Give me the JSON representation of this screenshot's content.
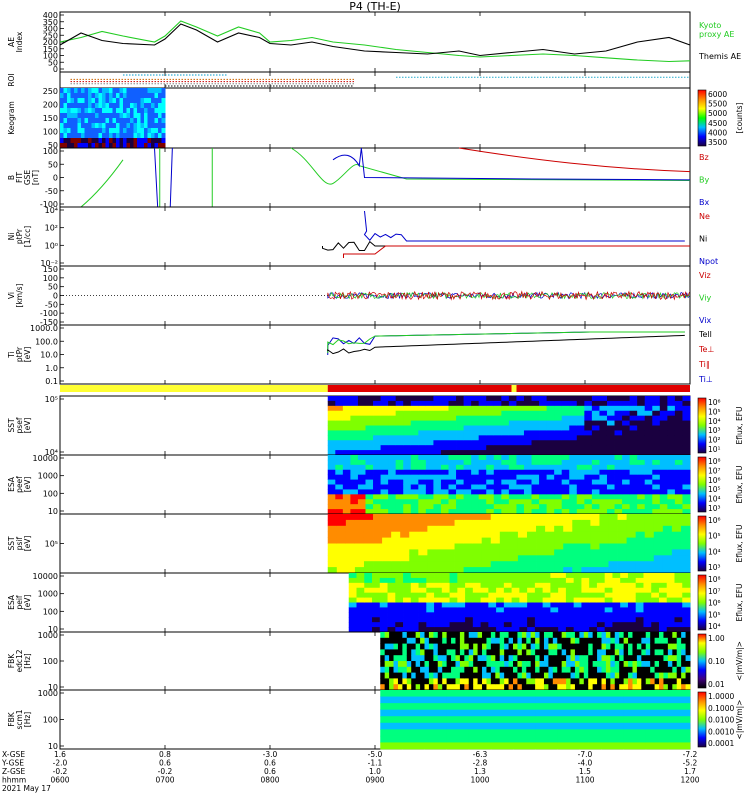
{
  "title": "P4 (TH-E)",
  "footer": {
    "row_labels": [
      "X-GSE",
      "Y-GSE",
      "Z-GSE",
      "hhmm",
      "2021 May 17"
    ],
    "x_ticks": [
      {
        "time": "0600",
        "cols": [
          "1.6",
          "-2.0",
          "-0.2"
        ]
      },
      {
        "time": "0700",
        "cols": [
          "0.8",
          "0.6",
          "-0.2"
        ]
      },
      {
        "time": "0800",
        "cols": [
          "-3.0",
          "0.6",
          "0.6"
        ]
      },
      {
        "time": "0900",
        "cols": [
          "-5.0",
          "-1.1",
          "1.0"
        ]
      },
      {
        "time": "1000",
        "cols": [
          "-6.3",
          "-2.8",
          "1.3"
        ]
      },
      {
        "time": "1100",
        "cols": [
          "-7.0",
          "-4.0",
          "1.5"
        ]
      },
      {
        "time": "1200",
        "cols": [
          "-7.2",
          "-5.2",
          "1.7"
        ]
      }
    ]
  },
  "chart_data": {
    "type": "line",
    "x_range": [
      "0600",
      "1200"
    ],
    "panels": [
      {
        "id": "ae",
        "ylabel": "AE Index",
        "ylim": [
          0,
          400
        ],
        "ticks": [
          "400",
          "350",
          "300",
          "250",
          "200",
          "150",
          "100",
          "50",
          "0"
        ],
        "legend": [
          {
            "name": "Kyoto proxy AE",
            "color": "#22cc22"
          },
          {
            "name": "Themis AE",
            "color": "#000000"
          }
        ],
        "series": [
          {
            "name": "Kyoto proxy AE",
            "color": "#22cc22",
            "x": [
              6.0,
              6.2,
              6.4,
              6.6,
              6.9,
              7.0,
              7.15,
              7.3,
              7.5,
              7.7,
              7.9,
              8.0,
              8.2,
              8.4,
              8.6,
              8.9,
              9.2,
              9.5,
              9.8,
              10.0,
              10.3,
              10.6,
              10.9,
              11.2,
              11.5,
              11.8,
              12.0
            ],
            "y": [
              200,
              230,
              270,
              240,
              200,
              240,
              340,
              300,
              240,
              300,
              260,
              200,
              210,
              230,
              200,
              180,
              150,
              130,
              110,
              100,
              110,
              120,
              110,
              95,
              80,
              70,
              75
            ]
          },
          {
            "name": "Themis AE",
            "color": "#000000",
            "x": [
              6.0,
              6.2,
              6.4,
              6.6,
              6.9,
              7.0,
              7.15,
              7.3,
              7.5,
              7.7,
              7.9,
              8.0,
              8.2,
              8.4,
              8.6,
              8.9,
              9.2,
              9.5,
              9.8,
              10.0,
              10.3,
              10.6,
              10.9,
              11.2,
              11.5,
              11.8,
              12.0
            ],
            "y": [
              180,
              260,
              210,
              190,
              180,
              220,
              320,
              280,
              200,
              260,
              230,
              190,
              180,
              200,
              170,
              140,
              130,
              120,
              140,
              110,
              130,
              150,
              120,
              140,
              200,
              230,
              180
            ]
          }
        ]
      },
      {
        "id": "roi",
        "ylabel": "ROI"
      },
      {
        "id": "keogram",
        "ylabel": "Keogram",
        "ylim": [
          0,
          250
        ],
        "ticks": [
          "250",
          "200",
          "150",
          "100",
          "50"
        ],
        "colorbar": {
          "ticks": [
            "6000",
            "5500",
            "5000",
            "4500",
            "4000",
            "3500"
          ],
          "unit": "[counts]"
        }
      },
      {
        "id": "bfit",
        "ylabel": "B FIT GSE [nT]",
        "ylim": [
          -100,
          100
        ],
        "ticks": [
          "100",
          "50",
          "0",
          "-50",
          "-100"
        ],
        "legend": [
          {
            "name": "Bz",
            "color": "#cc0000"
          },
          {
            "name": "By",
            "color": "#22cc22"
          },
          {
            "name": "Bx",
            "color": "#0000cc"
          }
        ]
      },
      {
        "id": "ni",
        "ylabel": "Ni ptPr [1/cc]",
        "ticks": [
          "10^4",
          "10^2",
          "10^0",
          "10^-2"
        ],
        "legend": [
          {
            "name": "Ne",
            "color": "#cc0000"
          },
          {
            "name": "Ni",
            "color": "#000000"
          },
          {
            "name": "Npot",
            "color": "#0000cc"
          }
        ]
      },
      {
        "id": "vi",
        "ylabel": "Vi [km/s]",
        "ylim": [
          -150,
          150
        ],
        "ticks": [
          "150",
          "100",
          "50",
          "0",
          "-50",
          "-100",
          "-150"
        ],
        "legend": [
          {
            "name": "Viz",
            "color": "#cc0000"
          },
          {
            "name": "Viy",
            "color": "#22cc22"
          },
          {
            "name": "Vix",
            "color": "#0000cc"
          }
        ]
      },
      {
        "id": "ti",
        "ylabel": "Ti ptPr [eV]",
        "ticks": [
          "1000.0",
          "100.0",
          "10.0",
          "1.0",
          "0.1"
        ],
        "legend": [
          {
            "name": "Tell",
            "color": "#000000"
          },
          {
            "name": "Te⊥",
            "color": "#cc0000"
          },
          {
            "name": "Ti∥",
            "color": "#cc0000"
          },
          {
            "name": "Ti⊥",
            "color": "#0000cc"
          }
        ]
      },
      {
        "id": "sst_e",
        "ylabel": "SST psef [eV]",
        "ticks": [
          "10^5",
          "10^4"
        ],
        "colorbar": {
          "unit": "Eflux, EFU",
          "ticks": [
            "10^6",
            "10^5",
            "10^4",
            "10^3",
            "10^2",
            "10^1"
          ]
        }
      },
      {
        "id": "esa_e",
        "ylabel": "ESA peef [eV]",
        "ticks": [
          "10000",
          "1000",
          "100",
          "10"
        ],
        "colorbar": {
          "unit": "Eflux, EFU",
          "ticks": [
            "10^8",
            "10^7",
            "10^6",
            "10^5",
            "10^4",
            "10^3"
          ]
        }
      },
      {
        "id": "sst_i",
        "ylabel": "SST psif [eV]",
        "ticks": [
          "10^5"
        ],
        "colorbar": {
          "unit": "Eflux, EFU",
          "ticks": [
            "10^6",
            "10^5",
            "10^4",
            "10^3"
          ]
        }
      },
      {
        "id": "esa_i",
        "ylabel": "ESA peif [eV]",
        "ticks": [
          "10000",
          "1000",
          "100",
          "10"
        ],
        "colorbar": {
          "unit": "Eflux, EFU",
          "ticks": [
            "10^8",
            "10^7",
            "10^6",
            "10^5",
            "10^4"
          ]
        }
      },
      {
        "id": "fbk_e",
        "ylabel": "FBK edc12 [Hz]",
        "ticks": [
          "1000",
          "100",
          "10"
        ],
        "colorbar": {
          "unit": "<|mV/m|>",
          "ticks": [
            "1.00",
            "0.10",
            "0.01"
          ]
        }
      },
      {
        "id": "fbk_b",
        "ylabel": "FBK scm1 [Hz]",
        "ticks": [
          "1000",
          "100",
          "10"
        ],
        "colorbar": {
          "unit": "<|mV/m|>",
          "ticks": [
            "1.0000",
            "0.1000",
            "0.0100",
            "0.0010",
            "0.0001"
          ]
        }
      }
    ]
  }
}
